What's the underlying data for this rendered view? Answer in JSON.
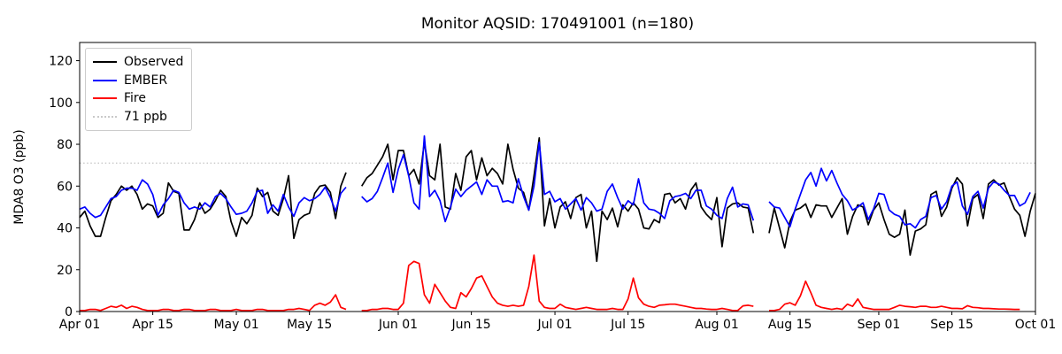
{
  "chart_data": {
    "type": "line",
    "title": "Monitor AQSID: 170491001 (n=180)",
    "ylabel": "MDA8 O3 (ppb)",
    "xlabel": "",
    "ylim": [
      0,
      128.7
    ],
    "yticks": [
      0,
      20,
      40,
      60,
      80,
      100,
      120
    ],
    "n_days": 184,
    "x_range": [
      "Apr 01",
      "Oct 01"
    ],
    "grid": false,
    "xticks": [
      {
        "label": "Apr 01",
        "day": 0
      },
      {
        "label": "Apr 15",
        "day": 14
      },
      {
        "label": "May 01",
        "day": 30
      },
      {
        "label": "May 15",
        "day": 44
      },
      {
        "label": "Jun 01",
        "day": 61
      },
      {
        "label": "Jun 15",
        "day": 75
      },
      {
        "label": "Jul 01",
        "day": 91
      },
      {
        "label": "Jul 15",
        "day": 105
      },
      {
        "label": "Aug 01",
        "day": 122
      },
      {
        "label": "Aug 15",
        "day": 136
      },
      {
        "label": "Sep 01",
        "day": 153
      },
      {
        "label": "Sep 15",
        "day": 167
      },
      {
        "label": "Oct 01",
        "day": 183
      }
    ],
    "threshold": {
      "label": "71 ppb",
      "value": 71,
      "color": "#c9c9c9",
      "style": "dotted"
    },
    "legend": {
      "position": "upper-left",
      "entries": [
        {
          "label": "Observed",
          "color": "#000000",
          "style": "solid"
        },
        {
          "label": "EMBER",
          "color": "#0000ff",
          "style": "solid"
        },
        {
          "label": "Fire",
          "color": "#ff0000",
          "style": "solid"
        },
        {
          "label": "71 ppb",
          "color": "#c9c9c9",
          "style": "dotted"
        }
      ]
    },
    "series": [
      {
        "name": "Observed",
        "color": "#000000",
        "values": [
          45,
          48,
          41,
          36,
          36,
          45,
          53,
          56,
          60,
          58,
          60,
          56,
          49,
          51.5,
          50.5,
          45,
          47,
          61.5,
          57.5,
          56.5,
          39,
          39,
          44,
          52,
          47,
          49,
          53,
          58,
          55,
          43,
          36,
          45,
          42,
          46,
          59,
          55,
          57,
          48,
          46,
          54,
          65,
          35,
          44,
          46,
          47,
          56.5,
          60,
          60.5,
          57,
          44.5,
          60,
          66.5,
          null,
          null,
          60,
          64,
          66,
          70,
          74,
          80,
          63,
          77,
          77,
          65,
          68,
          61,
          81,
          65,
          63,
          80,
          50,
          49,
          66,
          58,
          74,
          77,
          63,
          73.5,
          65,
          68.5,
          66,
          61,
          80,
          68,
          59,
          57,
          48.5,
          65,
          83,
          41,
          54,
          40,
          50,
          52.5,
          44.5,
          54.5,
          56,
          40,
          48,
          24,
          48,
          44,
          49.5,
          40.5,
          51,
          48,
          52,
          49,
          40,
          39.5,
          44,
          42.5,
          56,
          56.5,
          52,
          54,
          49,
          58,
          61.5,
          50,
          46.5,
          44,
          54.5,
          31,
          49.5,
          51.5,
          52,
          50,
          49.5,
          37.5,
          null,
          null,
          37.5,
          49.5,
          40,
          30.5,
          43,
          48.5,
          49.5,
          51.5,
          45,
          51,
          50.5,
          50.5,
          45,
          49.5,
          54,
          37,
          45.5,
          51,
          50,
          41.5,
          48.5,
          52,
          44,
          37,
          35.5,
          37,
          48.5,
          27,
          38.5,
          39.5,
          41.5,
          56,
          57.5,
          45.5,
          50,
          59,
          64,
          61,
          41,
          54,
          56,
          44.5,
          61,
          63,
          60.5,
          61.5,
          55,
          49,
          46,
          36,
          48,
          56.5
        ]
      },
      {
        "name": "EMBER",
        "color": "#0000ff",
        "values": [
          49,
          50,
          47,
          45,
          46,
          50,
          54,
          55,
          58,
          59,
          59,
          58,
          63,
          61,
          56,
          46,
          51,
          54,
          58,
          57,
          52,
          49,
          50,
          49,
          52,
          50,
          55,
          56.5,
          54,
          50,
          46.5,
          47,
          48,
          52,
          57.5,
          58,
          47,
          51,
          48,
          56,
          50,
          45.5,
          52,
          54.5,
          53,
          54,
          56,
          59.5,
          54.5,
          48,
          56.5,
          59.5,
          null,
          null,
          55,
          52.5,
          54,
          57.5,
          64,
          71,
          57,
          68,
          75,
          65,
          52,
          49,
          84,
          55,
          58,
          53,
          43,
          50,
          58.5,
          55,
          58,
          60,
          62,
          56,
          63,
          60,
          60,
          52.5,
          53,
          52,
          63.5,
          55,
          48.5,
          60,
          81,
          56,
          57.5,
          52.5,
          54,
          49,
          51.5,
          54,
          48.5,
          54.5,
          52,
          48,
          49,
          57.5,
          61,
          54.5,
          49,
          53,
          51,
          63.5,
          52,
          49,
          48.5,
          47,
          44.5,
          53,
          55,
          55.5,
          56.5,
          54,
          58,
          58,
          50.5,
          49,
          46,
          44.5,
          54,
          59.5,
          50,
          51.5,
          51,
          43.5,
          null,
          null,
          52.5,
          50,
          49.5,
          45,
          40.5,
          49,
          56,
          63,
          66.5,
          60,
          68.5,
          62.5,
          67.5,
          61.5,
          56,
          53,
          48.5,
          50,
          52,
          44,
          49,
          56.5,
          56,
          48.5,
          46.5,
          45.5,
          41.5,
          42,
          40,
          44,
          45.5,
          54.5,
          55.5,
          49,
          52.5,
          60,
          62,
          50.5,
          46.5,
          55,
          57.5,
          49.5,
          59,
          62,
          61,
          58,
          55.5,
          55.5,
          50.5,
          52,
          57,
          null
        ]
      },
      {
        "name": "Fire",
        "color": "#ff0000",
        "values": [
          0.5,
          0.5,
          1,
          1,
          0.5,
          1.5,
          2.5,
          2,
          3,
          1.5,
          2.5,
          2,
          1,
          0.5,
          0.5,
          0.5,
          1,
          1,
          0.5,
          0.5,
          1,
          1,
          0.5,
          0.5,
          0.5,
          1,
          1,
          0.5,
          0.5,
          0.5,
          1,
          0.5,
          0.5,
          0.5,
          1,
          1,
          0.5,
          0.5,
          0.5,
          0.5,
          1,
          1,
          1.5,
          1,
          0.5,
          3,
          4,
          3,
          4.5,
          8,
          2,
          1,
          null,
          null,
          0.5,
          0.5,
          1,
          1,
          1.5,
          1.5,
          1,
          1,
          4,
          22,
          24,
          23,
          8,
          4,
          13,
          9,
          5,
          2,
          1.5,
          9,
          7,
          11,
          16,
          17,
          12,
          7,
          4,
          3,
          2.5,
          3,
          2.5,
          3,
          12,
          27,
          5,
          2,
          1.5,
          1.5,
          3.5,
          2,
          1.5,
          1,
          1.5,
          2,
          1.5,
          1,
          1,
          1,
          1.5,
          1,
          1,
          6,
          16,
          6.5,
          3.5,
          2.5,
          2,
          3,
          3.2,
          3.5,
          3.5,
          3,
          2.5,
          2,
          1.5,
          1.5,
          1.2,
          1,
          1,
          1.5,
          1,
          0.5,
          0.5,
          2.7,
          3,
          2.5,
          null,
          null,
          0.5,
          0.5,
          1,
          3.5,
          4.2,
          3,
          7.5,
          14.5,
          9,
          3,
          2,
          1.5,
          1,
          1.5,
          1,
          3.5,
          2.5,
          6,
          2,
          1.5,
          1,
          1,
          1,
          1,
          2,
          3,
          2.5,
          2.3,
          2,
          2.5,
          2.5,
          2,
          2,
          2.5,
          2,
          1.5,
          1.5,
          1.3,
          2.8,
          2,
          1.8,
          1.5,
          1.5,
          1.3,
          1.2,
          1.2,
          1.1,
          1,
          1,
          null,
          null,
          null
        ]
      }
    ]
  }
}
